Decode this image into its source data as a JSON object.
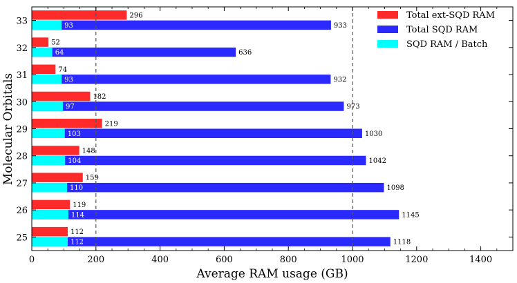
{
  "chart_data": {
    "type": "bar",
    "orientation": "horizontal",
    "xlabel": "Average RAM usage (GB)",
    "ylabel": "Molecular Orbitals",
    "xlim": [
      0,
      1500
    ],
    "xticks": [
      "0",
      "200",
      "400",
      "600",
      "800",
      "1000",
      "1200",
      "1400"
    ],
    "xtick_values": [
      0,
      200,
      400,
      600,
      800,
      1000,
      1200,
      1400
    ],
    "categories": [
      "33",
      "32",
      "31",
      "30",
      "29",
      "28",
      "27",
      "26",
      "25"
    ],
    "reference_lines": [
      200,
      1000
    ],
    "legend_position": "top-right",
    "grid": false,
    "series": [
      {
        "name": "Total ext-SQD RAM",
        "color": "#ff2a2a",
        "values": [
          296,
          52,
          74,
          182,
          219,
          148,
          159,
          119,
          112
        ]
      },
      {
        "name": "Total SQD RAM",
        "color": "#2a2aff",
        "values": [
          933,
          636,
          932,
          973,
          1030,
          1042,
          1098,
          1145,
          1118
        ]
      },
      {
        "name": "SQD RAM / Batch",
        "color": "#00ffff",
        "values": [
          93,
          64,
          93,
          97,
          103,
          104,
          110,
          114,
          112
        ]
      }
    ]
  }
}
